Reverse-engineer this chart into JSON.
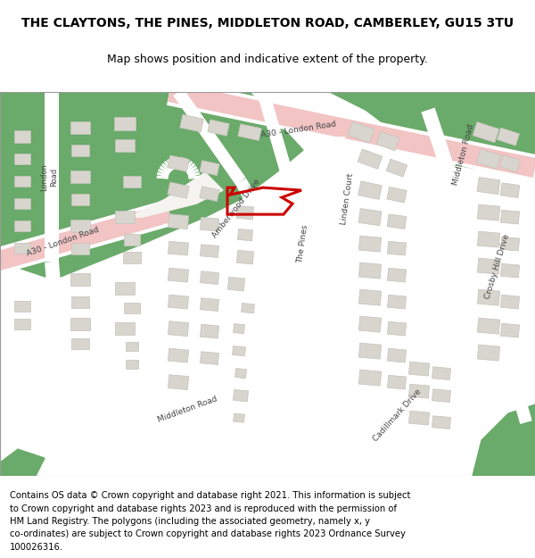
{
  "title_line1": "THE CLAYTONS, THE PINES, MIDDLETON ROAD, CAMBERLEY, GU15 3TU",
  "title_line2": "Map shows position and indicative extent of the property.",
  "copyright_text": "Contains OS data © Crown copyright and database right 2021. This information is subject\nto Crown copyright and database rights 2023 and is reproduced with the permission of\nHM Land Registry. The polygons (including the associated geometry, namely x, y\nco-ordinates) are subject to Crown copyright and database rights 2023 Ordnance Survey\n100026316.",
  "map_bg": "#f5f3f0",
  "green_color": "#6aaa6a",
  "pink_road_color": "#f2c4c4",
  "pink_road_center": "#eebbbb",
  "white_road_color": "#ffffff",
  "building_color": "#d8d5ce",
  "building_stroke": "#c5c2bb",
  "property_color": "#cc0000",
  "property_lw": 2.2,
  "title_fontsize": 10,
  "subtitle_fontsize": 9,
  "copyright_fontsize": 7.2,
  "label_color": "#444444",
  "label_fontsize": 6.5
}
